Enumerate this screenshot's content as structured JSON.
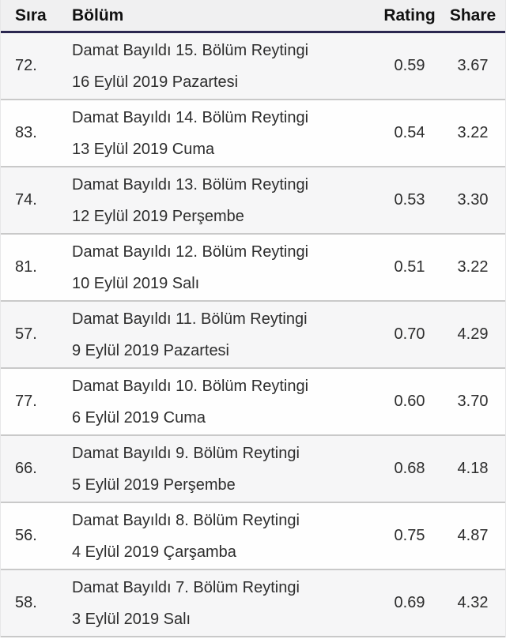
{
  "table": {
    "columns": [
      {
        "key": "rank",
        "label": "Sıra"
      },
      {
        "key": "episode",
        "label": "Bölüm"
      },
      {
        "key": "rating",
        "label": "Rating"
      },
      {
        "key": "share",
        "label": "Share"
      }
    ],
    "rows": [
      {
        "rank": "72.",
        "title": "Damat Bayıldı 15. Bölüm Reytingi",
        "date": "16 Eylül 2019 Pazartesi",
        "rating": "0.59",
        "share": "3.67"
      },
      {
        "rank": "83.",
        "title": "Damat Bayıldı 14. Bölüm Reytingi",
        "date": "13 Eylül 2019 Cuma",
        "rating": "0.54",
        "share": "3.22"
      },
      {
        "rank": "74.",
        "title": "Damat Bayıldı 13. Bölüm Reytingi",
        "date": "12 Eylül 2019 Perşembe",
        "rating": "0.53",
        "share": "3.30"
      },
      {
        "rank": "81.",
        "title": "Damat Bayıldı 12. Bölüm Reytingi",
        "date": "10 Eylül 2019 Salı",
        "rating": "0.51",
        "share": "3.22"
      },
      {
        "rank": "57.",
        "title": "Damat Bayıldı 11. Bölüm Reytingi",
        "date": "9 Eylül 2019 Pazartesi",
        "rating": "0.70",
        "share": "4.29"
      },
      {
        "rank": "77.",
        "title": "Damat Bayıldı 10. Bölüm Reytingi",
        "date": "6 Eylül 2019 Cuma",
        "rating": "0.60",
        "share": "3.70"
      },
      {
        "rank": "66.",
        "title": "Damat Bayıldı 9. Bölüm Reytingi",
        "date": "5 Eylül 2019 Perşembe",
        "rating": "0.68",
        "share": "4.18"
      },
      {
        "rank": "56.",
        "title": "Damat Bayıldı 8. Bölüm Reytingi",
        "date": "4 Eylül 2019 Çarşamba",
        "rating": "0.75",
        "share": "4.87"
      },
      {
        "rank": "58.",
        "title": "Damat Bayıldı 7. Bölüm Reytingi",
        "date": "3 Eylül 2019 Salı",
        "rating": "0.69",
        "share": "4.32"
      }
    ],
    "colors": {
      "header_bg": "#f0f0f1",
      "header_border": "#2b2750",
      "row_odd_bg": "#f6f6f7",
      "row_even_bg": "#fefefe",
      "row_border": "#c9c9c9",
      "text": "#2d2d2d"
    }
  }
}
